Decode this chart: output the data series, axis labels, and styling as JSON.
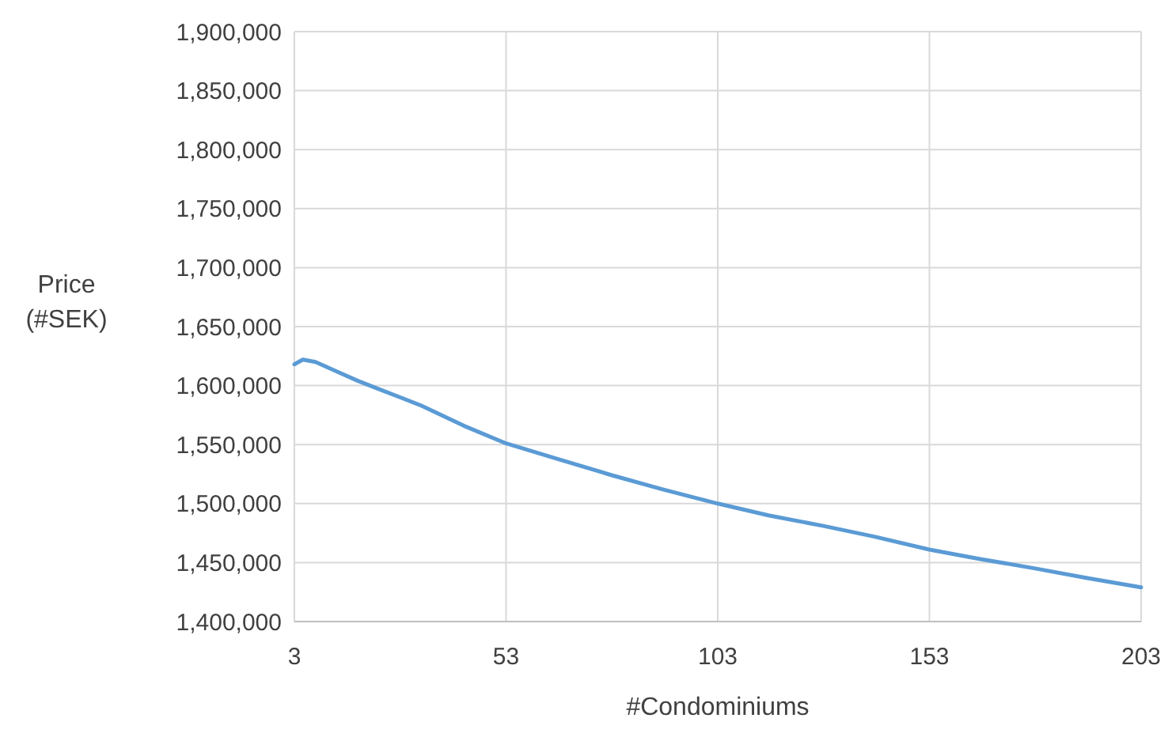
{
  "chart_data": {
    "type": "line",
    "xlabel": "#Condominiums",
    "ylabel": "Price\n(#SEK)",
    "xlim": [
      3,
      203
    ],
    "xticks": [
      3,
      53,
      103,
      153,
      203
    ],
    "ylim": [
      1400000,
      1900000
    ],
    "yticks": [
      {
        "value": 1400000,
        "label": "1,400,000"
      },
      {
        "value": 1450000,
        "label": "1,450,000"
      },
      {
        "value": 1500000,
        "label": "1,500,000"
      },
      {
        "value": 1550000,
        "label": "1,550,000"
      },
      {
        "value": 1600000,
        "label": "1,600,000"
      },
      {
        "value": 1650000,
        "label": "1,650,000"
      },
      {
        "value": 1700000,
        "label": "1,700,000"
      },
      {
        "value": 1750000,
        "label": "1,750,000"
      },
      {
        "value": 1800000,
        "label": "1,800,000"
      },
      {
        "value": 1850000,
        "label": "1,850,000"
      },
      {
        "value": 1900000,
        "label": "1,900,000"
      }
    ],
    "grid": true,
    "marker": "none",
    "line_style": "solid",
    "x": [
      3,
      5,
      8,
      13,
      18,
      23,
      33,
      43,
      53,
      65,
      78,
      90,
      103,
      115,
      128,
      140,
      153,
      165,
      178,
      190,
      203
    ],
    "series": [
      {
        "color": "#5b9bd5",
        "values": [
          1618000,
          1622000,
          1620000,
          1612000,
          1604000,
          1597000,
          1583000,
          1566000,
          1551000,
          1538000,
          1524000,
          1512000,
          1500000,
          1490000,
          1481000,
          1472000,
          1461000,
          1453000,
          1445000,
          1437000,
          1429000
        ]
      }
    ]
  }
}
